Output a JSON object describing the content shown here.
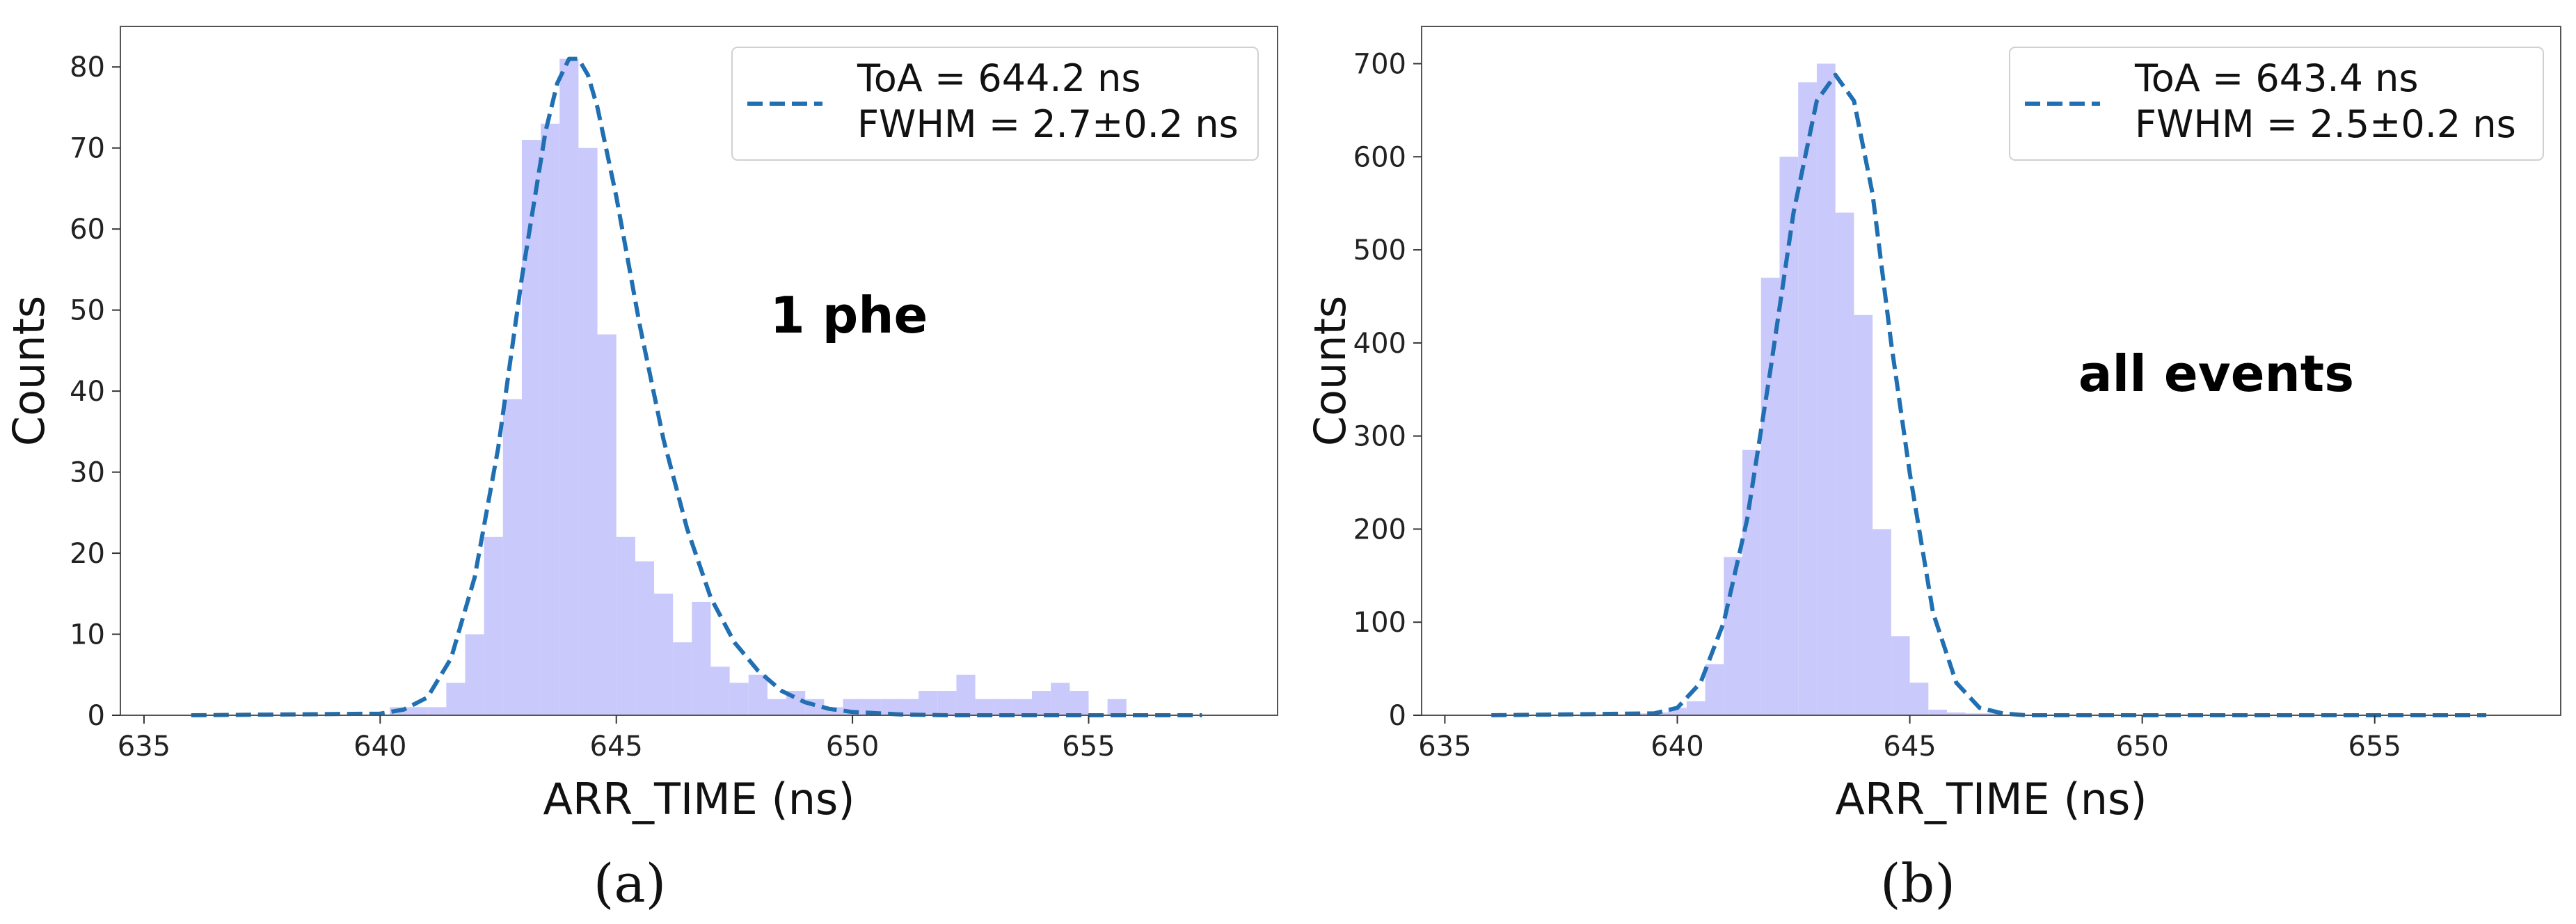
{
  "captions": [
    "(a)",
    "(b)"
  ],
  "colors": {
    "hist": "#c9c9fb",
    "fit": "#1f6fb2",
    "axis": "#555555"
  },
  "chart_data": [
    {
      "type": "bar",
      "xlabel": "ARR_TIME (ns)",
      "ylabel": "Counts",
      "xlim": [
        634.5,
        659
      ],
      "ylim": [
        0,
        85
      ],
      "xticks": [
        635,
        640,
        645,
        650,
        655
      ],
      "yticks": [
        0,
        10,
        20,
        30,
        40,
        50,
        60,
        70,
        80
      ],
      "grid": false,
      "legend_position": "top-right",
      "annotation": "1 phe",
      "bin_edges": [
        640.2,
        640.6,
        641.0,
        641.4,
        641.8,
        642.2,
        642.6,
        643.0,
        643.4,
        643.8,
        644.2,
        644.6,
        645.0,
        645.4,
        645.8,
        646.2,
        646.6,
        647.0,
        647.4,
        647.8,
        648.2,
        648.6,
        649.0,
        649.4,
        649.8,
        650.2,
        650.6,
        651.0,
        651.4,
        651.8,
        652.2,
        652.6,
        653.0,
        653.4,
        653.8,
        654.2,
        654.6,
        655.0,
        655.4,
        655.8,
        656.2,
        656.6,
        657.0,
        657.4,
        657.8
      ],
      "counts": [
        1,
        1,
        1,
        4,
        10,
        22,
        39,
        71,
        73,
        81,
        70,
        47,
        22,
        19,
        15,
        9,
        14,
        6,
        4,
        5,
        2,
        3,
        2,
        1,
        2,
        2,
        2,
        2,
        3,
        3,
        5,
        2,
        2,
        2,
        3,
        4,
        3,
        0,
        2,
        0,
        0,
        0,
        0,
        0
      ],
      "fit": {
        "name": "ToA = 644.2 ns\nFWHM = 2.7±0.2 ns",
        "x": [
          636.0,
          640.0,
          640.5,
          641.0,
          641.5,
          642.0,
          642.5,
          643.0,
          643.5,
          643.75,
          644.0,
          644.2,
          644.4,
          644.6,
          645.0,
          645.5,
          646.0,
          646.5,
          647.0,
          647.5,
          648.0,
          648.5,
          649.0,
          649.5,
          650.0,
          651.0,
          652.0,
          657.4
        ],
        "y": [
          0,
          0.2,
          0.7,
          2.2,
          7,
          17,
          33,
          54,
          72,
          78,
          81,
          81,
          79,
          75,
          64,
          48,
          34,
          23,
          14.5,
          9,
          5.5,
          3,
          1.6,
          0.8,
          0.4,
          0.1,
          0,
          0
        ]
      }
    },
    {
      "type": "bar",
      "xlabel": "ARR_TIME (ns)",
      "ylabel": "Counts",
      "xlim": [
        634.5,
        659
      ],
      "ylim": [
        0,
        740
      ],
      "xticks": [
        635,
        640,
        645,
        650,
        655
      ],
      "yticks": [
        0,
        100,
        200,
        300,
        400,
        500,
        600,
        700
      ],
      "grid": false,
      "legend_position": "top-right",
      "annotation": "all events",
      "bin_edges": [
        639.0,
        639.4,
        639.8,
        640.2,
        640.6,
        641.0,
        641.4,
        641.8,
        642.2,
        642.6,
        643.0,
        643.4,
        643.8,
        644.2,
        644.6,
        645.0,
        645.4,
        645.8,
        646.2,
        646.6,
        647.0
      ],
      "counts": [
        2,
        3,
        8,
        15,
        55,
        170,
        285,
        470,
        600,
        680,
        700,
        540,
        430,
        200,
        85,
        35,
        6,
        3,
        2,
        2
      ],
      "fit": {
        "name": "ToA = 643.4 ns\nFWHM = 2.5±0.2 ns",
        "x": [
          636.0,
          639.5,
          640.0,
          640.5,
          641.0,
          641.5,
          642.0,
          642.5,
          643.0,
          643.4,
          643.8,
          644.2,
          644.6,
          645.0,
          645.5,
          646.0,
          646.5,
          647.0,
          647.5,
          657.4
        ],
        "y": [
          0,
          2,
          8,
          35,
          100,
          210,
          370,
          540,
          660,
          688,
          660,
          560,
          400,
          260,
          110,
          35,
          8,
          2,
          0,
          0
        ]
      }
    }
  ]
}
